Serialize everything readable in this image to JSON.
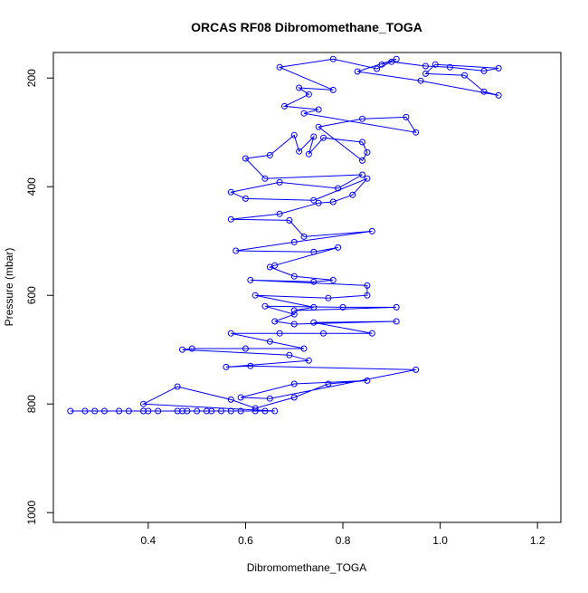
{
  "chart_data": {
    "type": "line",
    "title": "ORCAS RF08 Dibromomethane_TOGA",
    "xlabel": "Dibromomethane_TOGA",
    "ylabel": "Pressure (mbar)",
    "color": "#0000ff",
    "markers": true,
    "x": [
      0.24,
      0.27,
      0.29,
      0.31,
      0.34,
      0.36,
      0.39,
      0.4,
      0.42,
      0.46,
      0.47,
      0.48,
      0.5,
      0.52,
      0.53,
      0.55,
      0.57,
      0.59,
      0.62,
      0.64,
      0.66,
      0.39,
      0.46,
      0.57,
      0.62,
      0.7,
      0.77,
      0.85,
      0.7,
      0.59,
      0.65,
      0.95,
      0.61,
      0.56,
      0.73,
      0.69,
      0.47,
      0.49,
      0.6,
      0.72,
      0.65,
      0.57,
      0.67,
      0.76,
      0.86,
      0.74,
      0.91,
      0.7,
      0.66,
      0.7,
      0.64,
      0.8,
      0.91,
      0.7,
      0.74,
      0.62,
      0.77,
      0.85,
      0.85,
      0.61,
      0.74,
      0.78,
      0.7,
      0.65,
      0.66,
      0.79,
      0.74,
      0.58,
      0.7,
      0.86,
      0.72,
      0.69,
      0.57,
      0.67,
      0.75,
      0.78,
      0.82,
      0.85,
      0.74,
      0.6,
      0.57,
      0.67,
      0.79,
      0.84,
      0.64,
      0.6,
      0.65,
      0.7,
      0.71,
      0.74,
      0.73,
      0.76,
      0.84,
      0.85,
      0.84,
      0.75,
      0.84,
      0.93,
      0.95,
      0.72,
      0.75,
      0.68,
      0.73,
      0.71,
      0.78,
      0.67,
      0.78,
      0.87,
      0.9,
      0.97,
      1.02,
      1.09,
      1.12,
      0.99,
      0.97,
      1.05,
      1.09,
      1.12,
      0.96,
      0.83,
      0.91,
      0.88
    ],
    "values": [
      813,
      813,
      813,
      813,
      813,
      813,
      813,
      813,
      813,
      813,
      813,
      813,
      813,
      813,
      813,
      813,
      813,
      813,
      813,
      813,
      813,
      800,
      768,
      792,
      808,
      788,
      763,
      757,
      763,
      788,
      790,
      737,
      730,
      732,
      720,
      710,
      700,
      698,
      698,
      698,
      685,
      670,
      670,
      670,
      670,
      650,
      648,
      653,
      648,
      635,
      620,
      622,
      622,
      628,
      622,
      600,
      605,
      600,
      582,
      572,
      575,
      572,
      565,
      548,
      545,
      512,
      520,
      518,
      502,
      482,
      492,
      462,
      460,
      450,
      430,
      428,
      415,
      385,
      425,
      422,
      410,
      392,
      403,
      378,
      385,
      348,
      342,
      305,
      335,
      308,
      340,
      310,
      318,
      337,
      352,
      290,
      275,
      272,
      300,
      265,
      258,
      252,
      230,
      218,
      222,
      180,
      165,
      183,
      170,
      178,
      180,
      187,
      182,
      175,
      192,
      195,
      225,
      232,
      205,
      188,
      165,
      175
    ],
    "xlim": [
      0.205,
      1.248
    ],
    "ylim": [
      1018,
      153
    ],
    "xticks": [
      0.4,
      0.6,
      0.8,
      {
        "value": 1,
        "label": "1.0"
      },
      1.2
    ],
    "yticks": [
      200,
      400,
      600,
      800,
      1000
    ]
  }
}
